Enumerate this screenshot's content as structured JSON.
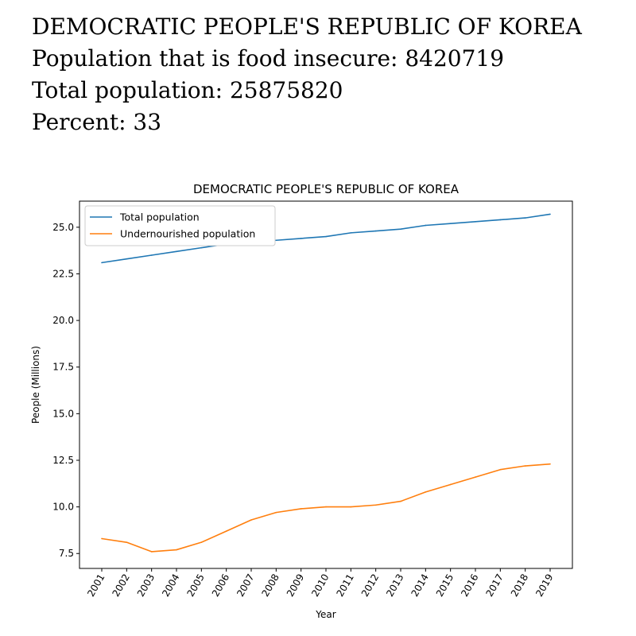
{
  "header": {
    "line1": "DEMOCRATIC PEOPLE'S REPUBLIC OF KOREA",
    "line2": "Population that is food insecure: 8420719",
    "line3": "Total population: 25875820",
    "line4": "Percent: 33"
  },
  "chart_data": {
    "type": "line",
    "title": "DEMOCRATIC PEOPLE'S REPUBLIC OF KOREA",
    "xlabel": "Year",
    "ylabel": "People (Millions)",
    "categories": [
      "2001",
      "2002",
      "2003",
      "2004",
      "2005",
      "2006",
      "2007",
      "2008",
      "2009",
      "2010",
      "2011",
      "2012",
      "2013",
      "2014",
      "2015",
      "2016",
      "2017",
      "2018",
      "2019"
    ],
    "ylim": [
      6.7,
      26.4
    ],
    "yticks": [
      7.5,
      10.0,
      12.5,
      15.0,
      17.5,
      20.0,
      22.5,
      25.0
    ],
    "ytick_labels": [
      "7.5",
      "10.0",
      "12.5",
      "15.0",
      "17.5",
      "20.0",
      "22.5",
      "25.0"
    ],
    "grid": false,
    "legend_position": "top-left",
    "series": [
      {
        "name": "Total population",
        "color": "#1f77b4",
        "values": [
          23.1,
          23.3,
          23.5,
          23.7,
          23.9,
          24.1,
          24.2,
          24.3,
          24.4,
          24.5,
          24.7,
          24.8,
          24.9,
          25.1,
          25.2,
          25.3,
          25.4,
          25.5,
          25.7
        ]
      },
      {
        "name": "Undernourished population",
        "color": "#ff7f0e",
        "values": [
          8.3,
          8.1,
          7.6,
          7.7,
          8.1,
          8.7,
          9.3,
          9.7,
          9.9,
          10.0,
          10.0,
          10.1,
          10.3,
          10.8,
          11.2,
          11.6,
          12.0,
          12.2,
          12.3
        ]
      }
    ]
  }
}
